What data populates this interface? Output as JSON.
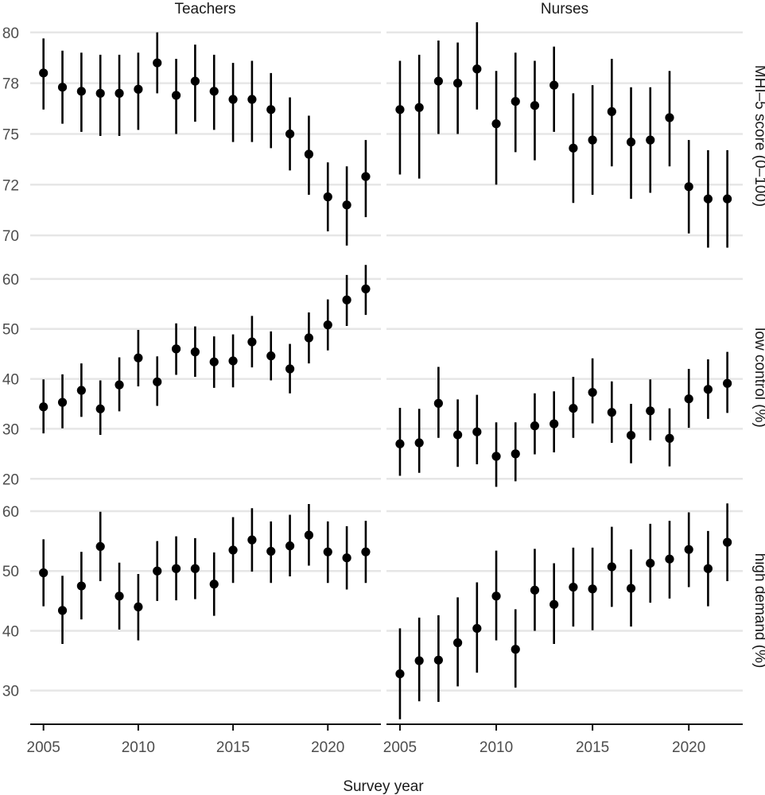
{
  "chart_data": {
    "type": "scatter",
    "style": "point-range faceted grid",
    "xlabel": "Survey year",
    "x_ticks": [
      2005,
      2010,
      2015,
      2020
    ],
    "xlim": [
      2004.3,
      2022.8
    ],
    "columns": [
      "Teachers",
      "Nurses"
    ],
    "rows": [
      {
        "label": "MHI–5 score (0–100)",
        "ylim": [
          69.3,
          80.5
        ],
        "y_ticks": [
          70,
          72,
          75,
          78,
          80
        ],
        "grid": [
          70,
          72.5,
          75,
          77.5,
          80
        ]
      },
      {
        "label": "low control (%)",
        "ylim": [
          17.5,
          63
        ],
        "y_ticks": [
          20,
          30,
          40,
          50,
          60
        ],
        "grid": [
          20,
          30,
          40,
          50,
          60
        ]
      },
      {
        "label": "high demand (%)",
        "ylim": [
          24.5,
          62
        ],
        "y_ticks": [
          30,
          40,
          50,
          60
        ],
        "grid": [
          30,
          40,
          50,
          60
        ]
      }
    ],
    "years": [
      2005,
      2006,
      2007,
      2008,
      2009,
      2010,
      2011,
      2012,
      2013,
      2014,
      2015,
      2016,
      2017,
      2018,
      2019,
      2020,
      2021,
      2022
    ],
    "panels": [
      {
        "row": 0,
        "col": 0,
        "y": [
          78.0,
          77.3,
          77.1,
          77.0,
          77.0,
          77.2,
          78.5,
          76.9,
          77.6,
          77.1,
          76.7,
          76.7,
          76.2,
          75.0,
          74.0,
          71.9,
          71.5,
          72.9
        ],
        "lo": [
          76.2,
          75.5,
          75.1,
          74.9,
          74.9,
          75.2,
          77.0,
          75.0,
          75.6,
          75.2,
          74.6,
          74.6,
          74.3,
          73.2,
          72.0,
          70.2,
          69.5,
          70.9
        ],
        "hi": [
          79.7,
          79.1,
          79.0,
          78.9,
          78.9,
          79.0,
          80.0,
          78.7,
          79.4,
          78.9,
          78.5,
          78.6,
          78.0,
          76.8,
          75.9,
          73.6,
          73.4,
          74.7
        ]
      },
      {
        "row": 0,
        "col": 1,
        "y": [
          76.2,
          76.3,
          77.6,
          77.5,
          78.2,
          75.5,
          76.6,
          76.4,
          77.4,
          74.3,
          74.7,
          76.1,
          74.6,
          74.7,
          75.8,
          72.4,
          71.8,
          71.8
        ],
        "lo": [
          73.0,
          72.8,
          75.0,
          75.0,
          76.2,
          72.5,
          74.1,
          73.7,
          75.1,
          71.6,
          72.0,
          73.4,
          71.8,
          72.1,
          73.4,
          70.1,
          69.4,
          69.4
        ],
        "hi": [
          78.6,
          78.9,
          79.6,
          79.5,
          80.5,
          78.1,
          79.0,
          78.6,
          79.3,
          77.0,
          77.4,
          78.7,
          77.3,
          77.3,
          78.1,
          74.7,
          74.2,
          74.2
        ]
      },
      {
        "row": 1,
        "col": 0,
        "y": [
          34.4,
          35.3,
          37.7,
          34.0,
          38.8,
          44.2,
          39.4,
          46.0,
          45.4,
          43.4,
          43.6,
          47.4,
          44.6,
          42.0,
          48.2,
          50.8,
          55.8,
          58.0
        ],
        "lo": [
          29.1,
          30.1,
          32.4,
          28.8,
          33.5,
          38.5,
          34.6,
          40.8,
          40.4,
          38.2,
          38.3,
          42.3,
          39.7,
          37.1,
          43.1,
          45.7,
          50.6,
          52.8
        ],
        "hi": [
          39.9,
          40.9,
          43.1,
          39.7,
          44.3,
          49.8,
          44.5,
          51.1,
          50.5,
          48.5,
          48.9,
          52.6,
          49.5,
          47.0,
          53.3,
          55.9,
          60.8,
          62.8
        ]
      },
      {
        "row": 1,
        "col": 1,
        "y": [
          27.0,
          27.2,
          35.1,
          28.8,
          29.4,
          24.5,
          25.0,
          30.6,
          31.0,
          34.1,
          37.3,
          33.3,
          28.7,
          33.6,
          28.1,
          36.0,
          37.9,
          39.1
        ],
        "lo": [
          20.6,
          21.2,
          28.2,
          22.4,
          22.9,
          18.4,
          19.5,
          24.9,
          25.3,
          28.2,
          31.1,
          27.2,
          23.1,
          27.7,
          22.5,
          30.2,
          32.0,
          33.2
        ],
        "hi": [
          34.2,
          34.0,
          42.4,
          35.9,
          36.8,
          31.3,
          31.3,
          37.1,
          37.5,
          40.4,
          44.1,
          39.5,
          35.0,
          39.9,
          34.1,
          42.0,
          43.9,
          45.4
        ]
      },
      {
        "row": 2,
        "col": 0,
        "y": [
          49.7,
          43.4,
          47.5,
          54.1,
          45.8,
          44.0,
          50.0,
          50.4,
          50.4,
          47.8,
          53.5,
          55.2,
          53.3,
          54.2,
          56.0,
          53.2,
          52.2,
          53.2
        ],
        "lo": [
          44.1,
          37.8,
          41.9,
          48.3,
          40.2,
          38.4,
          45.0,
          45.1,
          45.3,
          42.5,
          48.0,
          49.9,
          48.0,
          49.1,
          50.9,
          48.0,
          46.9,
          48.0
        ],
        "hi": [
          55.3,
          49.2,
          53.2,
          59.9,
          51.4,
          49.5,
          55.0,
          55.8,
          55.5,
          53.1,
          59.0,
          60.5,
          58.3,
          59.4,
          61.2,
          58.3,
          57.5,
          58.4
        ]
      },
      {
        "row": 2,
        "col": 1,
        "y": [
          32.8,
          35.0,
          35.1,
          38.0,
          40.4,
          45.8,
          36.9,
          46.8,
          44.4,
          47.3,
          47.0,
          50.7,
          47.1,
          51.3,
          52.0,
          53.6,
          50.4,
          54.8
        ],
        "lo": [
          25.2,
          28.2,
          28.1,
          30.7,
          33.0,
          38.4,
          30.5,
          40.0,
          37.8,
          40.7,
          40.1,
          44.0,
          40.7,
          44.7,
          45.4,
          47.3,
          44.1,
          48.3
        ],
        "hi": [
          40.4,
          42.2,
          42.6,
          45.6,
          48.1,
          53.4,
          43.6,
          53.7,
          51.3,
          53.9,
          53.9,
          57.4,
          53.6,
          57.9,
          58.4,
          59.8,
          56.7,
          61.3
        ]
      }
    ]
  }
}
